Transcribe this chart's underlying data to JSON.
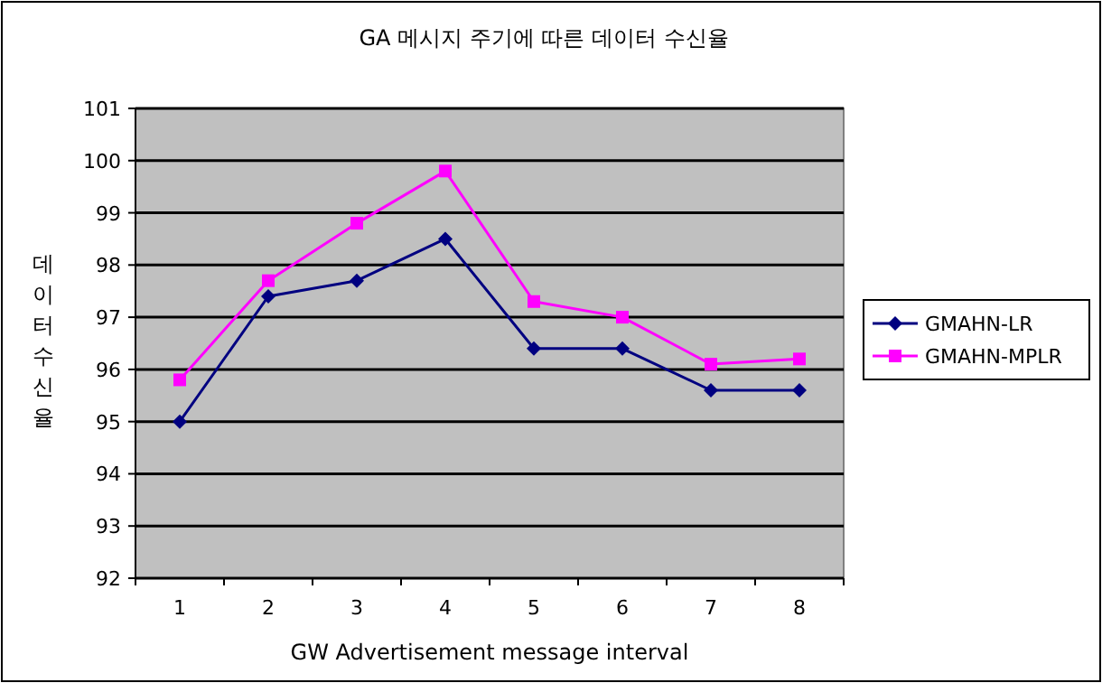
{
  "chart_data": {
    "type": "line",
    "title": "GA 메시지 주기에 따른 데이터 수신율",
    "xlabel": "GW Advertisement message interval",
    "ylabel": "데이터수신율",
    "categories": [
      "1",
      "2",
      "3",
      "4",
      "5",
      "6",
      "7",
      "8"
    ],
    "series": [
      {
        "name": "GMAHN-LR",
        "color": "#000080",
        "marker": "diamond",
        "values": [
          95.0,
          97.4,
          97.7,
          98.5,
          96.4,
          96.4,
          95.6,
          95.6
        ]
      },
      {
        "name": "GMAHN-MPLR",
        "color": "#ff00ff",
        "marker": "square",
        "values": [
          95.8,
          97.7,
          98.8,
          99.8,
          97.3,
          97.0,
          96.1,
          96.2
        ]
      }
    ],
    "ylim": [
      92,
      101
    ],
    "yticks": [
      92,
      93,
      94,
      95,
      96,
      97,
      98,
      99,
      100,
      101
    ],
    "grid": "y",
    "legend": "right",
    "line_style": "solid"
  }
}
